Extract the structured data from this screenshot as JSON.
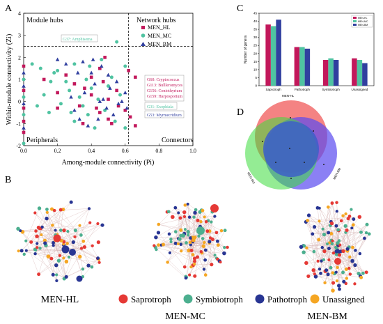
{
  "panels": {
    "a": "A",
    "b": "B",
    "c": "C",
    "d": "D"
  },
  "colors": {
    "hl": "#c2185b",
    "mc": "#4fc3a1",
    "bm": "#303f9f",
    "saprotroph": "#e53935",
    "symbiotroph": "#4caf8f",
    "pathotroph": "#283593",
    "unassigned": "#f5a623"
  },
  "chart_data": [
    {
      "type": "scatter",
      "xlabel": "Among-module connectivity (Pi)",
      "ylabel": "Within-module connectivity (Zi)",
      "xlim": [
        0,
        1.0
      ],
      "ylim": [
        -2,
        4
      ],
      "xticks": [
        "0.0",
        "0.2",
        "0.4",
        "0.6",
        "0.8",
        "1.0"
      ],
      "yticks": [
        "-2",
        "-1",
        "0",
        "1",
        "2",
        "3",
        "4"
      ],
      "thresholds": {
        "x": 0.62,
        "y": 2.5
      },
      "quadrants": [
        "Module hubs",
        "Network hubs",
        "Peripherals",
        "Connectors"
      ],
      "legend_position": "top-right",
      "annotations": [
        {
          "text": "G37: Arnphisema",
          "series": "MEN_MC"
        },
        {
          "text": "G60: Cryptococcus",
          "series": "MEN_HL"
        },
        {
          "text": "G113: Bullleromyces",
          "series": "MEN_HL"
        },
        {
          "text": "G156: Coniothyrium",
          "series": "MEN_HL"
        },
        {
          "text": "G159: Harpospo​rium",
          "series": "MEN_HL"
        },
        {
          "text": "G31: Exophiala",
          "series": "MEN_MC"
        },
        {
          "text": "G53: Myrmecridium",
          "series": "MEN_BM"
        }
      ],
      "series": [
        {
          "name": "MEN_HL",
          "marker": "square",
          "points": [
            [
              0.0,
              0.5
            ],
            [
              0.0,
              -0.3
            ],
            [
              0.0,
              -0.9
            ],
            [
              0.0,
              1.6
            ],
            [
              0.0,
              -1.4
            ],
            [
              0.12,
              1.0
            ],
            [
              0.2,
              0.4
            ],
            [
              0.2,
              -0.3
            ],
            [
              0.25,
              1.2
            ],
            [
              0.3,
              0.8
            ],
            [
              0.33,
              -0.2
            ],
            [
              0.35,
              -1.0
            ],
            [
              0.4,
              1.1
            ],
            [
              0.4,
              0.3
            ],
            [
              0.45,
              1.5
            ],
            [
              0.45,
              -0.5
            ],
            [
              0.47,
              0.9
            ],
            [
              0.5,
              0.1
            ],
            [
              0.5,
              -0.8
            ],
            [
              0.52,
              -1.0
            ],
            [
              0.55,
              0.5
            ],
            [
              0.56,
              -0.2
            ],
            [
              0.6,
              -0.4
            ],
            [
              0.62,
              1.4
            ],
            [
              0.63,
              -0.7
            ],
            [
              0.66,
              1.1
            ],
            [
              0.66,
              -1.1
            ],
            [
              0.48,
              2.0
            ],
            [
              0.36,
              0.6
            ],
            [
              0.43,
              -0.3
            ]
          ]
        },
        {
          "name": "MEN_MC",
          "marker": "circle",
          "points": [
            [
              0.0,
              0.2
            ],
            [
              0.0,
              -0.6
            ],
            [
              0.0,
              1.0
            ],
            [
              0.0,
              -1.9
            ],
            [
              0.05,
              1.7
            ],
            [
              0.1,
              1.5
            ],
            [
              0.12,
              0.3
            ],
            [
              0.15,
              -0.5
            ],
            [
              0.18,
              1.3
            ],
            [
              0.2,
              1.4
            ],
            [
              0.22,
              -0.1
            ],
            [
              0.25,
              0.9
            ],
            [
              0.27,
              0.5
            ],
            [
              0.3,
              -0.9
            ],
            [
              0.3,
              1.7
            ],
            [
              0.33,
              0.2
            ],
            [
              0.35,
              -0.2
            ],
            [
              0.37,
              1.0
            ],
            [
              0.38,
              -0.6
            ],
            [
              0.4,
              0.6
            ],
            [
              0.42,
              -1.2
            ],
            [
              0.44,
              0.1
            ],
            [
              0.46,
              1.9
            ],
            [
              0.48,
              -0.4
            ],
            [
              0.5,
              0.7
            ],
            [
              0.52,
              1.1
            ],
            [
              0.54,
              -0.9
            ],
            [
              0.55,
              2.7
            ],
            [
              0.57,
              0.3
            ],
            [
              0.6,
              1.6
            ],
            [
              0.6,
              -1.2
            ],
            [
              0.28,
              -0.5
            ],
            [
              0.16,
              0.9
            ],
            [
              0.08,
              -0.2
            ],
            [
              0.39,
              1.6
            ]
          ]
        },
        {
          "name": "MEN_BM",
          "marker": "triangle",
          "points": [
            [
              0.0,
              0.7
            ],
            [
              0.0,
              -0.1
            ],
            [
              0.0,
              -1.2
            ],
            [
              0.0,
              1.3
            ],
            [
              0.2,
              1.9
            ],
            [
              0.25,
              1.7
            ],
            [
              0.28,
              0.2
            ],
            [
              0.3,
              -0.4
            ],
            [
              0.32,
              1.3
            ],
            [
              0.35,
              1.8
            ],
            [
              0.36,
              0.4
            ],
            [
              0.38,
              -1.1
            ],
            [
              0.4,
              1.3
            ],
            [
              0.42,
              0.8
            ],
            [
              0.44,
              -0.8
            ],
            [
              0.46,
              1.6
            ],
            [
              0.47,
              0.1
            ],
            [
              0.49,
              -0.3
            ],
            [
              0.5,
              1.2
            ],
            [
              0.51,
              0.6
            ],
            [
              0.53,
              -0.6
            ],
            [
              0.55,
              0.9
            ],
            [
              0.56,
              -0.1
            ],
            [
              0.58,
              0.0
            ],
            [
              0.6,
              0.4
            ],
            [
              0.61,
              -0.3
            ],
            [
              0.45,
              0.0
            ],
            [
              0.41,
              1.9
            ],
            [
              0.33,
              -0.8
            ]
          ]
        }
      ]
    },
    {
      "type": "bar",
      "ylabel": "Number of genera",
      "ylim": [
        0,
        45
      ],
      "yticks": [
        "0",
        "5",
        "10",
        "15",
        "20",
        "25",
        "30",
        "35",
        "40",
        "45"
      ],
      "categories": [
        "Saprotroph",
        "Pathotroph",
        "Symbiotroph",
        "Unassigned"
      ],
      "legend_position": "top-right",
      "series": [
        {
          "name": "MEN-HL",
          "values": [
            38,
            24,
            16,
            17
          ]
        },
        {
          "name": "MEN-MC",
          "values": [
            37,
            24,
            17,
            16
          ]
        },
        {
          "name": "MEN-BM",
          "values": [
            41,
            23,
            16,
            14
          ]
        }
      ]
    },
    {
      "type": "venn",
      "sets": [
        "MEN-HL",
        "MEN-MC",
        "MEN-BM"
      ]
    }
  ],
  "networks": {
    "labels": [
      "MEN-HL",
      "MEN-MC",
      "MEN-BM"
    ],
    "legend": [
      "Saprotroph",
      "Symbiotroph",
      "Pathotroph",
      "Unassigned"
    ]
  }
}
